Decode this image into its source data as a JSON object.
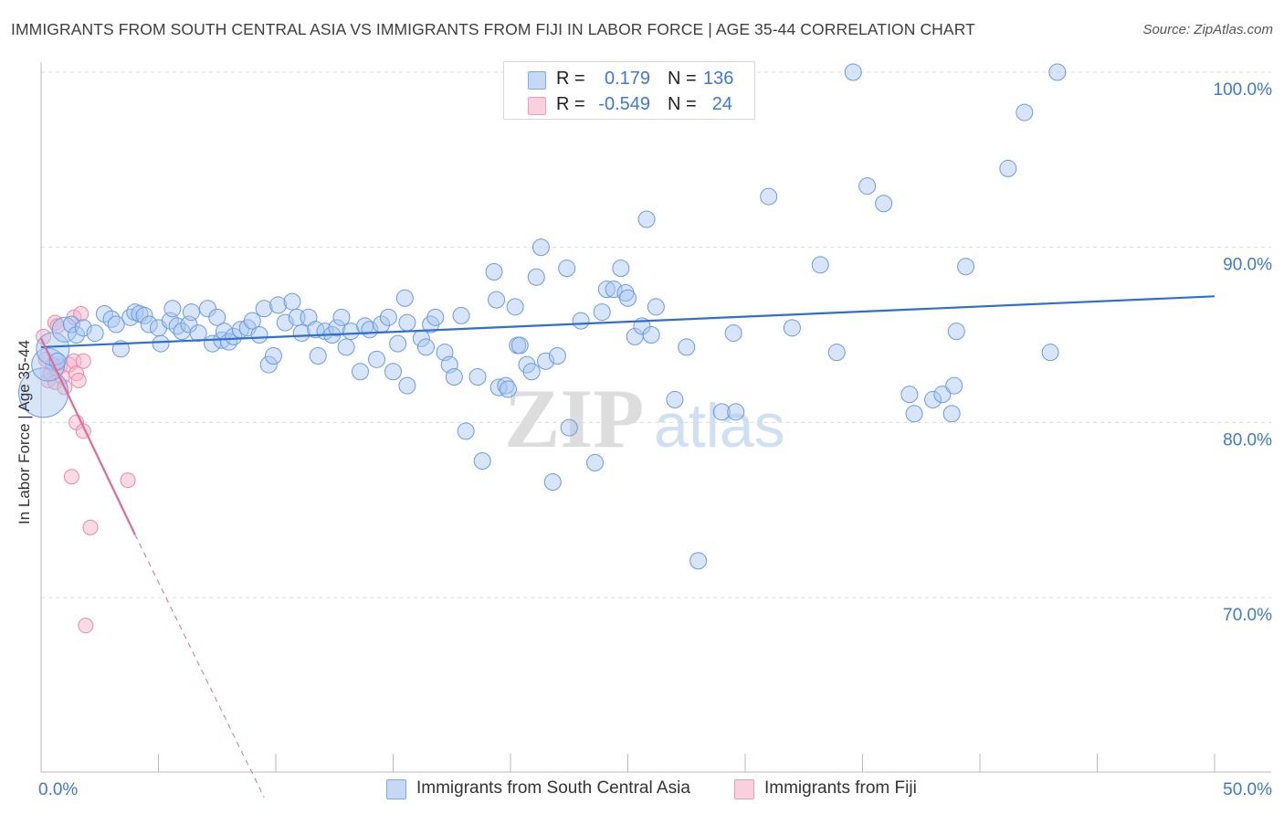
{
  "header": {
    "title": "IMMIGRANTS FROM SOUTH CENTRAL ASIA VS IMMIGRANTS FROM FIJI IN LABOR FORCE | AGE 35-44 CORRELATION CHART",
    "source": "Source: ZipAtlas.com"
  },
  "legend": {
    "rows": [
      {
        "r_label": "R =",
        "r_value": "0.179",
        "n_label": "N =",
        "n_value": "136",
        "color": "#a9c6f2"
      },
      {
        "r_label": "R =",
        "r_value": "-0.549",
        "n_label": "N =",
        "n_value": "24",
        "color": "#f5b6c9"
      }
    ]
  },
  "watermark": {
    "zip": "ZIP",
    "atlas": "atlas"
  },
  "colors": {
    "blue_fill": "#a9c6f2",
    "blue_stroke": "#6b9be0",
    "blue_line": "#2f6fcf",
    "pink_fill": "#f5b6c9",
    "pink_stroke": "#e88aa8",
    "pink_line": "#e06a96",
    "tick_label": "#3d78d8",
    "grid": "#dcdcdc"
  },
  "chart_data": {
    "type": "scatter",
    "title": "IMMIGRANTS FROM SOUTH CENTRAL ASIA VS IMMIGRANTS FROM FIJI IN LABOR FORCE | AGE 35-44 CORRELATION CHART",
    "xlabel": "",
    "ylabel": "In Labor Force | Age 35-44",
    "xlim": [
      0,
      50
    ],
    "ylim": [
      60.5,
      102
    ],
    "x_tick_labels": [
      {
        "value": 0,
        "label": "0.0%"
      },
      {
        "value": 50,
        "label": "50.0%"
      }
    ],
    "y_tick_labels": [
      {
        "value": 100,
        "label": "100.0%"
      },
      {
        "value": 90,
        "label": "90.0%"
      },
      {
        "value": 80,
        "label": "80.0%"
      },
      {
        "value": 70,
        "label": "70.0%"
      }
    ],
    "x_minor_ticks": [
      0,
      5,
      10,
      15,
      20,
      25,
      30,
      35,
      40,
      45,
      50
    ],
    "series": [
      {
        "name": "Immigrants from South Central Asia",
        "r": 0.179,
        "n": 136,
        "trend": {
          "x0": 0,
          "y0": 84.3,
          "x1": 50,
          "y1": 87.2
        },
        "points": [
          [
            0.1,
            81.7,
            3
          ],
          [
            0.3,
            83.3,
            2
          ],
          [
            0.5,
            84.2,
            2
          ],
          [
            0.7,
            83.5,
            1
          ],
          [
            1.0,
            85.3,
            1.5
          ],
          [
            1.3,
            85.6,
            1
          ],
          [
            1.5,
            85.0,
            1
          ],
          [
            1.8,
            85.4,
            1
          ],
          [
            2.3,
            85.1,
            1
          ],
          [
            2.7,
            86.2,
            1
          ],
          [
            3.0,
            85.9,
            1
          ],
          [
            3.2,
            85.6,
            1
          ],
          [
            3.4,
            84.2,
            1
          ],
          [
            3.8,
            86.0,
            1
          ],
          [
            4.0,
            86.3,
            1
          ],
          [
            4.2,
            86.2,
            1
          ],
          [
            4.4,
            86.1,
            1
          ],
          [
            4.6,
            85.6,
            1
          ],
          [
            5.0,
            85.4,
            1
          ],
          [
            5.1,
            84.5,
            1
          ],
          [
            5.5,
            85.8,
            1
          ],
          [
            5.6,
            86.5,
            1
          ],
          [
            5.8,
            85.5,
            1
          ],
          [
            6.0,
            85.2,
            1
          ],
          [
            6.3,
            85.6,
            1
          ],
          [
            6.4,
            86.3,
            1
          ],
          [
            6.7,
            85.1,
            1
          ],
          [
            7.1,
            86.5,
            1
          ],
          [
            7.3,
            84.5,
            1
          ],
          [
            7.5,
            86.0,
            1
          ],
          [
            7.7,
            84.7,
            1
          ],
          [
            7.8,
            85.2,
            1
          ],
          [
            8.0,
            84.6,
            1
          ],
          [
            8.2,
            84.9,
            1
          ],
          [
            8.5,
            85.3,
            1
          ],
          [
            8.8,
            85.4,
            1
          ],
          [
            9.0,
            85.8,
            1
          ],
          [
            9.3,
            85.0,
            1
          ],
          [
            9.5,
            86.5,
            1
          ],
          [
            9.7,
            83.3,
            1
          ],
          [
            9.9,
            83.8,
            1
          ],
          [
            10.1,
            86.7,
            1
          ],
          [
            10.4,
            85.7,
            1
          ],
          [
            10.7,
            86.9,
            1
          ],
          [
            10.9,
            86.0,
            1
          ],
          [
            11.1,
            85.1,
            1
          ],
          [
            11.4,
            86.0,
            1
          ],
          [
            11.7,
            85.3,
            1
          ],
          [
            11.8,
            83.8,
            1
          ],
          [
            12.1,
            85.2,
            1
          ],
          [
            12.4,
            85.0,
            1
          ],
          [
            12.6,
            85.4,
            1
          ],
          [
            12.8,
            86.0,
            1
          ],
          [
            13.0,
            84.3,
            1
          ],
          [
            13.2,
            85.2,
            1
          ],
          [
            13.6,
            82.9,
            1
          ],
          [
            13.8,
            85.5,
            1
          ],
          [
            14.0,
            85.3,
            1
          ],
          [
            14.3,
            83.6,
            1
          ],
          [
            14.5,
            85.6,
            1
          ],
          [
            14.8,
            86.0,
            1
          ],
          [
            15.0,
            82.9,
            1
          ],
          [
            15.2,
            84.5,
            1
          ],
          [
            15.6,
            82.1,
            1
          ],
          [
            15.6,
            85.7,
            1
          ],
          [
            15.5,
            87.1,
            1
          ],
          [
            16.2,
            84.8,
            1
          ],
          [
            16.4,
            84.3,
            1
          ],
          [
            16.6,
            85.6,
            1
          ],
          [
            16.8,
            86.0,
            1
          ],
          [
            17.2,
            84.0,
            1
          ],
          [
            17.4,
            83.3,
            1
          ],
          [
            17.6,
            82.6,
            1
          ],
          [
            17.9,
            86.1,
            1
          ],
          [
            18.1,
            79.5,
            1
          ],
          [
            18.6,
            82.6,
            1
          ],
          [
            18.8,
            77.8,
            1
          ],
          [
            19.3,
            88.6,
            1
          ],
          [
            19.4,
            87.0,
            1
          ],
          [
            19.5,
            82.0,
            1
          ],
          [
            19.8,
            82.1,
            1
          ],
          [
            19.9,
            81.9,
            1
          ],
          [
            20.2,
            86.6,
            1
          ],
          [
            20.3,
            84.4,
            1
          ],
          [
            20.4,
            84.4,
            1
          ],
          [
            20.7,
            83.3,
            1
          ],
          [
            20.9,
            82.9,
            1
          ],
          [
            21.1,
            88.3,
            1
          ],
          [
            21.3,
            90.0,
            1
          ],
          [
            21.5,
            83.5,
            1
          ],
          [
            21.8,
            76.6,
            1
          ],
          [
            22.0,
            83.8,
            1
          ],
          [
            22.4,
            88.8,
            1
          ],
          [
            22.5,
            79.7,
            1
          ],
          [
            23.0,
            85.8,
            1
          ],
          [
            23.6,
            77.7,
            1
          ],
          [
            23.9,
            86.3,
            1
          ],
          [
            24.1,
            87.6,
            1
          ],
          [
            24.4,
            87.6,
            1
          ],
          [
            24.7,
            88.8,
            1
          ],
          [
            24.9,
            87.4,
            1
          ],
          [
            25.0,
            87.1,
            1
          ],
          [
            25.3,
            84.9,
            1
          ],
          [
            25.6,
            85.5,
            1
          ],
          [
            25.8,
            91.6,
            1
          ],
          [
            26.0,
            85.0,
            1
          ],
          [
            26.2,
            86.6,
            1
          ],
          [
            27.0,
            81.3,
            1
          ],
          [
            27.5,
            84.3,
            1
          ],
          [
            28.0,
            72.1,
            1
          ],
          [
            29.0,
            80.6,
            1
          ],
          [
            29.5,
            85.1,
            1
          ],
          [
            29.6,
            80.6,
            1
          ],
          [
            31.0,
            92.9,
            1
          ],
          [
            32.0,
            85.4,
            1
          ],
          [
            33.2,
            89.0,
            1
          ],
          [
            33.9,
            84.0,
            1
          ],
          [
            34.6,
            100.0,
            1
          ],
          [
            35.2,
            93.5,
            1
          ],
          [
            35.9,
            92.5,
            1
          ],
          [
            37.0,
            81.6,
            1
          ],
          [
            37.2,
            80.5,
            1
          ],
          [
            38.0,
            81.3,
            1
          ],
          [
            38.4,
            81.6,
            1
          ],
          [
            38.9,
            82.1,
            1
          ],
          [
            38.8,
            80.5,
            1
          ],
          [
            39.0,
            85.2,
            1
          ],
          [
            39.4,
            88.9,
            1
          ],
          [
            41.2,
            94.5,
            1
          ],
          [
            41.9,
            97.7,
            1
          ],
          [
            43.3,
            100.0,
            1
          ],
          [
            43.0,
            84.0,
            1
          ]
        ]
      },
      {
        "name": "Immigrants from Fiji",
        "r": -0.549,
        "n": 24,
        "trend": {
          "x0": 0,
          "y0": 84.8,
          "x1": 4.0,
          "y1": 73.6,
          "dash_to_x": 9.5,
          "dash_to_y": 58.6
        },
        "points": [
          [
            0.1,
            84.9
          ],
          [
            0.2,
            83.6
          ],
          [
            0.3,
            82.4
          ],
          [
            0.4,
            82.8
          ],
          [
            0.5,
            83.3
          ],
          [
            0.6,
            82.3
          ],
          [
            0.6,
            85.7
          ],
          [
            0.7,
            85.5
          ],
          [
            0.8,
            83.2
          ],
          [
            0.9,
            82.6
          ],
          [
            1.0,
            82.0
          ],
          [
            1.2,
            83.3
          ],
          [
            1.4,
            86.0
          ],
          [
            1.4,
            83.5
          ],
          [
            1.5,
            82.8
          ],
          [
            1.6,
            82.4
          ],
          [
            1.7,
            86.2
          ],
          [
            1.8,
            83.5
          ],
          [
            1.5,
            80.0
          ],
          [
            1.8,
            79.5
          ],
          [
            1.3,
            76.9
          ],
          [
            3.7,
            76.7
          ],
          [
            2.1,
            74.0
          ],
          [
            1.9,
            68.4
          ]
        ]
      }
    ]
  }
}
